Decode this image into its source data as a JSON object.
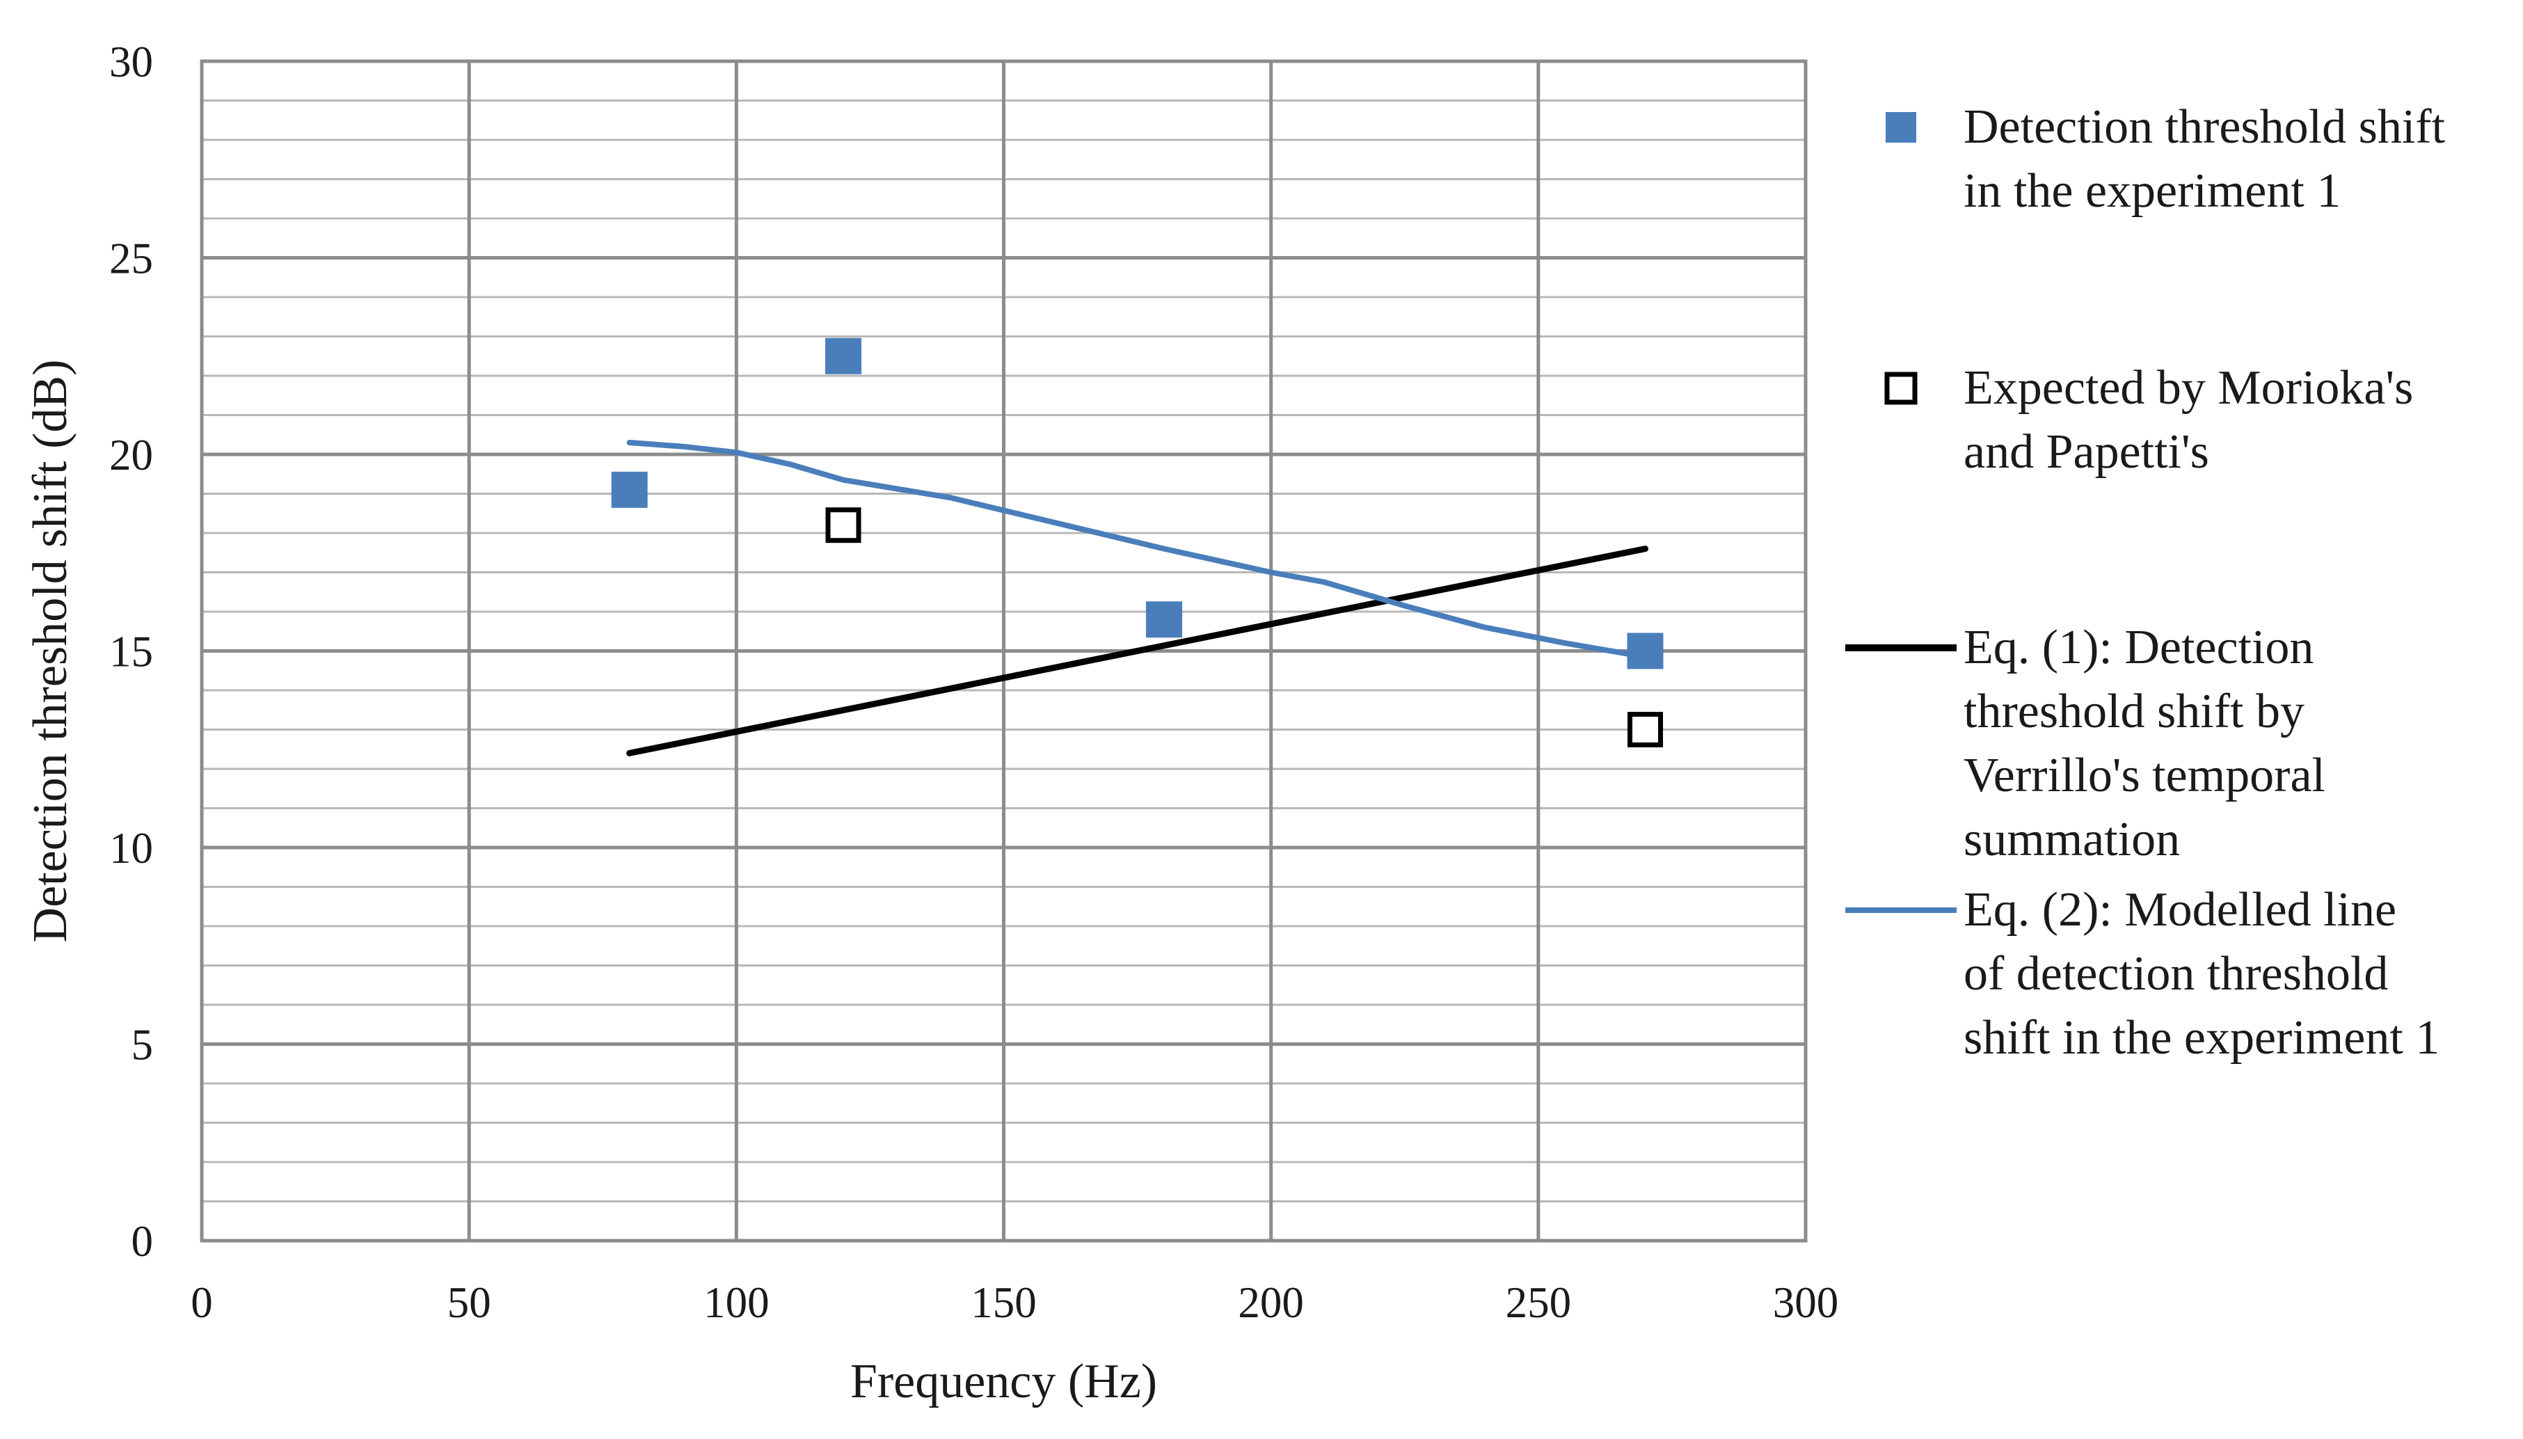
{
  "chart_data": {
    "type": "scatter",
    "title": "",
    "xlabel": "Frequency (Hz)",
    "ylabel": "Detection threshold shift (dB)",
    "xlim": [
      0,
      300
    ],
    "ylim": [
      0,
      30
    ],
    "xticks": [
      0,
      50,
      100,
      150,
      200,
      250,
      300
    ],
    "yticks": [
      0,
      5,
      10,
      15,
      20,
      25,
      30
    ],
    "grid": "major and minor",
    "legend_position": "right",
    "series": [
      {
        "name": "Detection threshold shift in the experiment 1",
        "legend_lines": [
          "Detection threshold shift",
          "in the experiment 1"
        ],
        "kind": "filled-square",
        "color": "#4a7ebb",
        "x": [
          80,
          120,
          180,
          270
        ],
        "y": [
          19.1,
          22.5,
          15.8,
          15.0
        ]
      },
      {
        "name": "Expected by Morioka's and Papetti's",
        "legend_lines": [
          "Expected by Morioka's",
          "and Papetti's"
        ],
        "kind": "open-square",
        "color": "#000000",
        "x": [
          120,
          270
        ],
        "y": [
          18.2,
          13.0
        ]
      },
      {
        "name": "Eq. (1): Detection threshold shift by Verrillo's temporal summation",
        "legend_lines": [
          "Eq. (1): Detection",
          "threshold shift by",
          "Verrillo's temporal",
          "summation"
        ],
        "kind": "line",
        "color": "#000000",
        "x": [
          80,
          270
        ],
        "y": [
          12.4,
          17.6
        ]
      },
      {
        "name": "Eq. (2): Modelled line of detection threshold shift in the experiment 1",
        "legend_lines": [
          "Eq. (2): Modelled line",
          "of detection threshold",
          "shift in the experiment 1"
        ],
        "kind": "line",
        "color": "#4a7ebb",
        "x": [
          80,
          90,
          100,
          110,
          120,
          140,
          160,
          180,
          200,
          210,
          225,
          240,
          255,
          270
        ],
        "y": [
          20.3,
          20.2,
          20.05,
          19.75,
          19.35,
          18.9,
          18.25,
          17.6,
          17.0,
          16.75,
          16.15,
          15.6,
          15.2,
          14.85
        ]
      }
    ]
  }
}
